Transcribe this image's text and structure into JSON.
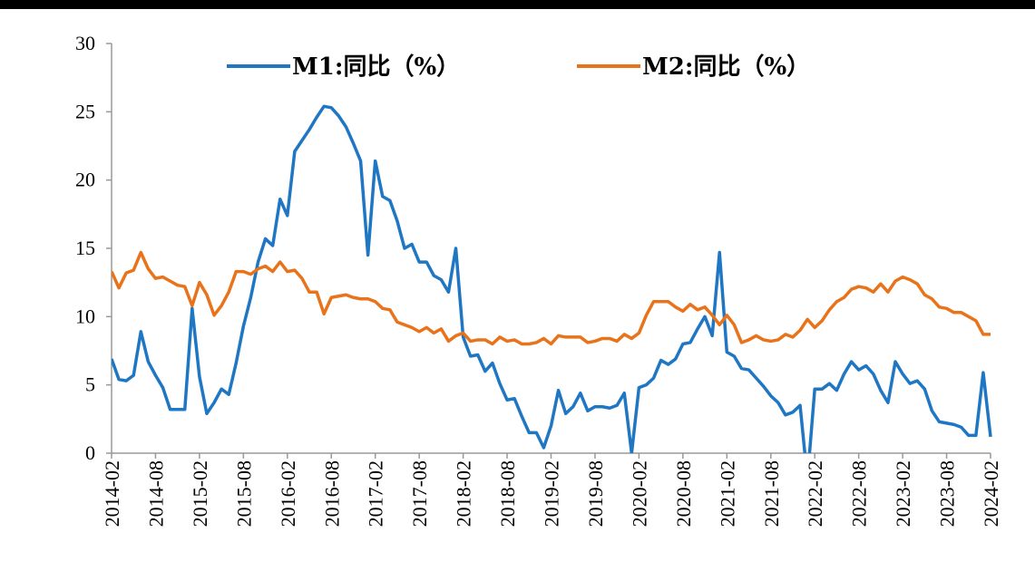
{
  "chart_data": {
    "type": "line",
    "categories": [
      "2014-02",
      null,
      null,
      null,
      null,
      null,
      "2014-08",
      null,
      null,
      null,
      null,
      null,
      "2015-02",
      null,
      null,
      null,
      null,
      null,
      "2015-08",
      null,
      null,
      null,
      null,
      null,
      "2016-02",
      null,
      null,
      null,
      null,
      null,
      "2016-08",
      null,
      null,
      null,
      null,
      null,
      "2017-02",
      null,
      null,
      null,
      null,
      null,
      "2017-08",
      null,
      null,
      null,
      null,
      null,
      "2018-02",
      null,
      null,
      null,
      null,
      null,
      "2018-08",
      null,
      null,
      null,
      null,
      null,
      "2019-02",
      null,
      null,
      null,
      null,
      null,
      "2019-08",
      null,
      null,
      null,
      null,
      null,
      "2020-02",
      null,
      null,
      null,
      null,
      null,
      "2020-08",
      null,
      null,
      null,
      null,
      null,
      "2021-02",
      null,
      null,
      null,
      null,
      null,
      "2021-08",
      null,
      null,
      null,
      null,
      null,
      "2022-02",
      null,
      null,
      null,
      null,
      null,
      "2022-08",
      null,
      null,
      null,
      null,
      null,
      "2023-02",
      null,
      null,
      null,
      null,
      null,
      "2023-08",
      null,
      null,
      null,
      null,
      null,
      "2024-02"
    ],
    "series": [
      {
        "name": "M1:同比（%）",
        "color": "#1f77c4",
        "values": [
          6.9,
          5.4,
          5.3,
          5.7,
          8.9,
          6.7,
          5.7,
          4.8,
          3.2,
          3.2,
          3.2,
          10.6,
          5.6,
          2.9,
          3.7,
          4.7,
          4.3,
          6.6,
          9.3,
          11.4,
          14.0,
          15.7,
          15.2,
          18.6,
          17.4,
          22.1,
          22.9,
          23.7,
          24.6,
          25.4,
          25.3,
          24.7,
          23.9,
          22.7,
          21.4,
          14.5,
          21.4,
          18.8,
          18.5,
          17.0,
          15.0,
          15.3,
          14.0,
          14.0,
          13.0,
          12.7,
          11.8,
          15.0,
          8.5,
          7.1,
          7.2,
          6.0,
          6.6,
          5.1,
          3.9,
          4.0,
          2.7,
          1.5,
          1.5,
          0.4,
          2.0,
          4.6,
          2.9,
          3.4,
          4.4,
          3.1,
          3.4,
          3.4,
          3.3,
          3.5,
          4.4,
          0.0,
          4.8,
          5.0,
          5.5,
          6.8,
          6.5,
          6.9,
          8.0,
          8.1,
          9.1,
          10.0,
          8.6,
          14.7,
          7.4,
          7.1,
          6.2,
          6.1,
          5.5,
          4.9,
          4.2,
          3.7,
          2.8,
          3.0,
          3.5,
          -1.9,
          4.7,
          4.7,
          5.1,
          4.6,
          5.8,
          6.7,
          6.1,
          6.4,
          5.8,
          4.6,
          3.7,
          6.7,
          5.8,
          5.1,
          5.3,
          4.7,
          3.1,
          2.3,
          2.2,
          2.1,
          1.9,
          1.3,
          1.3,
          5.9,
          1.2
        ]
      },
      {
        "name": "M2:同比（%）",
        "color": "#e8731a",
        "values": [
          13.3,
          12.1,
          13.2,
          13.4,
          14.7,
          13.5,
          12.8,
          12.9,
          12.6,
          12.3,
          12.2,
          10.8,
          12.5,
          11.6,
          10.1,
          10.8,
          11.8,
          13.3,
          13.3,
          13.1,
          13.5,
          13.7,
          13.3,
          14.0,
          13.3,
          13.4,
          12.8,
          11.8,
          11.8,
          10.2,
          11.4,
          11.5,
          11.6,
          11.4,
          11.3,
          11.3,
          11.1,
          10.6,
          10.5,
          9.6,
          9.4,
          9.2,
          8.9,
          9.2,
          8.8,
          9.1,
          8.2,
          8.6,
          8.8,
          8.2,
          8.3,
          8.3,
          8.0,
          8.5,
          8.2,
          8.3,
          8.0,
          8.0,
          8.1,
          8.4,
          8.0,
          8.6,
          8.5,
          8.5,
          8.5,
          8.1,
          8.2,
          8.4,
          8.4,
          8.2,
          8.7,
          8.4,
          8.8,
          10.1,
          11.1,
          11.1,
          11.1,
          10.7,
          10.4,
          10.9,
          10.5,
          10.7,
          10.1,
          9.4,
          10.1,
          9.4,
          8.1,
          8.3,
          8.6,
          8.3,
          8.2,
          8.3,
          8.7,
          8.5,
          9.0,
          9.8,
          9.2,
          9.7,
          10.5,
          11.1,
          11.4,
          12.0,
          12.2,
          12.1,
          11.8,
          12.4,
          11.8,
          12.6,
          12.9,
          12.7,
          12.4,
          11.6,
          11.3,
          10.7,
          10.6,
          10.3,
          10.3,
          10.0,
          9.7,
          8.7,
          8.7
        ]
      }
    ],
    "ylim": [
      0,
      30
    ],
    "yticks": [
      0,
      5,
      10,
      15,
      20,
      25,
      30
    ],
    "grid": false,
    "legend": "top"
  }
}
